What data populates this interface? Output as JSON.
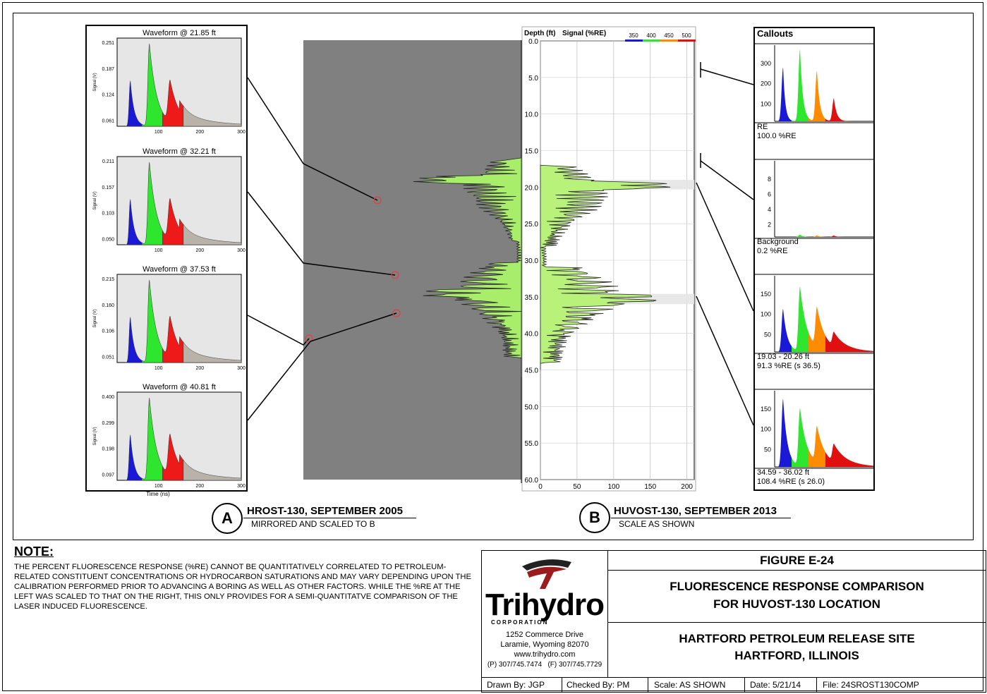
{
  "chart_data": [
    {
      "type": "area",
      "id": "waveforms",
      "panels": [
        {
          "title": "Waveform @ 21.85 ft",
          "yticks": [
            "0.251",
            "0.187",
            "0.124",
            "0.061"
          ],
          "xticks": [
            "100",
            "200",
            "300"
          ],
          "ylabel": "Signal (V)"
        },
        {
          "title": "Waveform @ 32.21 ft",
          "yticks": [
            "0.211",
            "0.157",
            "0.103",
            "0.050"
          ],
          "xticks": [
            "100",
            "200",
            "300"
          ],
          "ylabel": "Signal (V)"
        },
        {
          "title": "Waveform @ 37.53 ft",
          "yticks": [
            "0.215",
            "0.160",
            "0.106",
            "0.051"
          ],
          "xticks": [
            "100",
            "200",
            "300"
          ],
          "ylabel": "Signal (V)"
        },
        {
          "title": "Waveform @ 40.81 ft",
          "yticks": [
            "0.400",
            "0.299",
            "0.198",
            "0.097"
          ],
          "xticks": [
            "100",
            "200",
            "300"
          ],
          "ylabel": "Signal (V)",
          "xlabel": "Time (ns)"
        }
      ],
      "channel_colors": [
        "#1a1ad6",
        "#2ee62e",
        "#ee1a1a",
        "#b8b2a8"
      ]
    },
    {
      "type": "area",
      "id": "log",
      "header_depth": "Depth (ft)",
      "header_signal": "Signal (%RE)",
      "legend": [
        "350",
        "400",
        "450",
        "500"
      ],
      "legend_colors": [
        "#1a1ad6",
        "#2ee62e",
        "#ff8c00",
        "#e01010"
      ],
      "yticks": [
        "0.0",
        "5.0",
        "10.0",
        "15.0",
        "20.0",
        "25.0",
        "30.0",
        "35.0",
        "40.0",
        "45.0",
        "50.0",
        "55.0",
        "60.0"
      ],
      "xticks": [
        "0",
        "50",
        "100",
        "150",
        "200"
      ],
      "ylim": [
        0,
        60
      ],
      "xlim": [
        0,
        210
      ]
    },
    {
      "type": "area",
      "id": "callouts",
      "title": "Callouts",
      "panels": [
        {
          "label1": "RE",
          "label2": "100.0 %RE",
          "yticks": [
            "300",
            "200",
            "100"
          ]
        },
        {
          "label1": "Background",
          "label2": "0.2 %RE",
          "yticks": [
            "8",
            "6",
            "4",
            "2"
          ]
        },
        {
          "label1": "19.03 - 20.26 ft",
          "label2": "91.3 %RE (s 36.5)",
          "yticks": [
            "150",
            "100",
            "50"
          ]
        },
        {
          "label1": "34.59 - 36.02 ft",
          "label2": "108.4 %RE (s 26.0)",
          "yticks": [
            "150",
            "100",
            "50"
          ]
        }
      ]
    }
  ],
  "captions": {
    "a_letter": "A",
    "a_title": "HROST-130, SEPTEMBER 2005",
    "a_sub": "MIRRORED AND SCALED TO B",
    "b_letter": "B",
    "b_title": "HUVOST-130, SEPTEMBER 2013",
    "b_sub": "SCALE AS SHOWN"
  },
  "note": {
    "head": "NOTE:",
    "text": "THE PERCENT FLUORESCENCE RESPONSE (%RE) CANNOT BE QUANTITATIVELY CORRELATED TO PETROLEUM-RELATED CONSTITUENT CONCENTRATIONS OR HYDROCARBON SATURATIONS AND MAY VARY DEPENDING UPON THE CALIBRATION PERFORMED PRIOR TO ADVANCING A BORING AS WELL AS OTHER FACTORS. WHILE THE %RE AT THE LEFT WAS SCALED TO THAT ON THE RIGHT, THIS ONLY PROVIDES FOR A SEMI-QUANTITATVE COMPARISON OF THE LASER INDUCED FLUORESCENCE."
  },
  "titleblock": {
    "company": "Trihydro",
    "corporation": "CORPORATION",
    "address1": "1252 Commerce Drive",
    "address2": "Laramie, Wyoming 82070",
    "web": "www.trihydro.com",
    "phones": "(P) 307/745.7474   (F) 307/745.7729",
    "figure": "FIGURE E-24",
    "title1": "FLUORESCENCE RESPONSE COMPARISON",
    "title2": "FOR HUVOST-130 LOCATION",
    "site1": "HARTFORD PETROLEUM RELEASE SITE",
    "site2": "HARTFORD, ILLINOIS",
    "drawn": "Drawn By: JGP",
    "checked": "Checked By: PM",
    "scale": "Scale: AS SHOWN",
    "date": "Date: 5/21/14",
    "file": "File: 24SROST130COMP"
  }
}
